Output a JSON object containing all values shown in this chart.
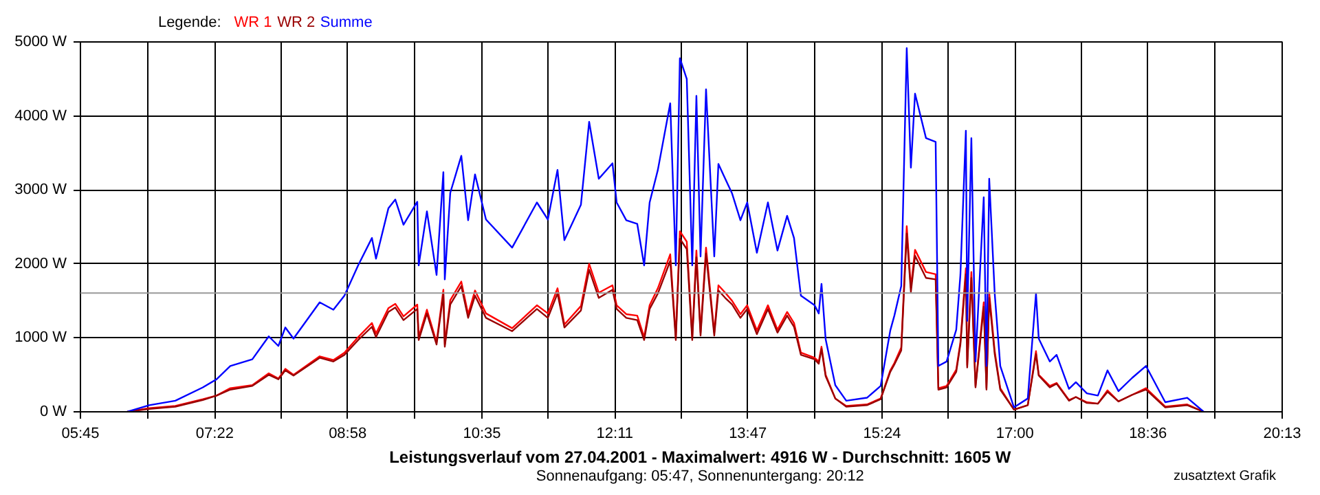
{
  "chart_data": {
    "type": "line",
    "title": "Leistungsverlauf vom 27.04.2001 - Maximalwert: 4916 W - Durchschnitt: 1605 W",
    "subtitle": "Sonnenaufgang: 05:47, Sonnenuntergang: 20:12",
    "legend_title": "Legende:",
    "annotations": [
      "zusatztext Grafik"
    ],
    "x": [
      6.313,
      6.578,
      6.892,
      7.223,
      7.389,
      7.554,
      7.819,
      8.017,
      8.133,
      8.216,
      8.315,
      8.63,
      8.795,
      8.928,
      9.093,
      9.259,
      9.308,
      9.457,
      9.54,
      9.639,
      9.805,
      9.822,
      9.921,
      10.037,
      10.119,
      10.136,
      10.202,
      10.335,
      10.417,
      10.5,
      10.632,
      10.947,
      11.245,
      11.377,
      11.493,
      11.576,
      11.775,
      11.874,
      11.99,
      12.155,
      12.205,
      12.321,
      12.453,
      12.536,
      12.602,
      12.701,
      12.85,
      12.917,
      12.966,
      13.049,
      13.115,
      13.165,
      13.215,
      13.281,
      13.38,
      13.43,
      13.512,
      13.595,
      13.695,
      13.777,
      13.893,
      14.026,
      14.141,
      14.257,
      14.34,
      14.423,
      14.588,
      14.638,
      14.671,
      14.721,
      14.837,
      14.969,
      15.218,
      15.383,
      15.499,
      15.548,
      15.631,
      15.697,
      15.747,
      15.797,
      15.929,
      16.045,
      16.078,
      16.177,
      16.293,
      16.343,
      16.409,
      16.425,
      16.475,
      16.525,
      16.624,
      16.657,
      16.69,
      16.756,
      16.823,
      16.988,
      17.154,
      17.253,
      17.286,
      17.419,
      17.501,
      17.65,
      17.733,
      17.865,
      17.998,
      18.114,
      18.246,
      18.412,
      18.577,
      18.809,
      19.074,
      19.272
    ],
    "series": [
      {
        "name": "WR 1",
        "color": "#ff0000",
        "values": [
          0,
          50,
          80,
          170,
          220,
          320,
          360,
          520,
          450,
          580,
          500,
          750,
          700,
          800,
          1010,
          1200,
          1060,
          1400,
          1460,
          1290,
          1450,
          1010,
          1380,
          940,
          1650,
          910,
          1510,
          1760,
          1320,
          1640,
          1330,
          1130,
          1440,
          1330,
          1670,
          1180,
          1430,
          2000,
          1610,
          1710,
          1440,
          1320,
          1300,
          1010,
          1440,
          1670,
          2130,
          1010,
          2440,
          2300,
          1010,
          2180,
          1070,
          2220,
          1070,
          1710,
          1610,
          1500,
          1320,
          1440,
          1100,
          1440,
          1110,
          1350,
          1200,
          800,
          730,
          680,
          880,
          500,
          180,
          80,
          100,
          180,
          560,
          660,
          870,
          2510,
          1680,
          2190,
          1890,
          1860,
          320,
          350,
          570,
          940,
          1940,
          630,
          1890,
          350,
          1480,
          320,
          1610,
          820,
          320,
          30,
          90,
          820,
          500,
          350,
          390,
          160,
          200,
          130,
          110,
          290,
          140,
          230,
          320,
          70,
          100,
          0
        ]
      },
      {
        "name": "WR 2",
        "color": "#990000",
        "values": [
          0,
          40,
          70,
          160,
          220,
          300,
          350,
          500,
          440,
          560,
          490,
          730,
          680,
          770,
          970,
          1150,
          1010,
          1350,
          1410,
          1240,
          1390,
          970,
          1330,
          910,
          1590,
          880,
          1450,
          1700,
          1270,
          1570,
          1270,
          1090,
          1390,
          1270,
          1600,
          1140,
          1370,
          1920,
          1540,
          1650,
          1390,
          1270,
          1240,
          970,
          1390,
          1600,
          2040,
          970,
          2340,
          2200,
          970,
          2090,
          1030,
          2140,
          1030,
          1640,
          1540,
          1450,
          1270,
          1390,
          1050,
          1390,
          1070,
          1300,
          1150,
          770,
          710,
          650,
          850,
          480,
          180,
          70,
          90,
          170,
          540,
          640,
          830,
          2410,
          1620,
          2110,
          1810,
          1790,
          300,
          330,
          540,
          910,
          1860,
          600,
          1810,
          330,
          1420,
          300,
          1540,
          780,
          300,
          30,
          90,
          780,
          490,
          330,
          380,
          150,
          200,
          120,
          110,
          270,
          140,
          230,
          300,
          60,
          90,
          0
        ]
      },
      {
        "name": "Summe",
        "color": "#0000ff",
        "values": [
          0,
          90,
          150,
          330,
          440,
          620,
          710,
          1020,
          890,
          1140,
          990,
          1480,
          1380,
          1570,
          1980,
          2350,
          2070,
          2750,
          2870,
          2530,
          2840,
          1980,
          2710,
          1850,
          3240,
          1790,
          2960,
          3460,
          2590,
          3210,
          2600,
          2220,
          2830,
          2600,
          3270,
          2320,
          2800,
          3920,
          3150,
          3360,
          2830,
          2590,
          2540,
          1980,
          2830,
          3270,
          4170,
          1980,
          4780,
          4500,
          1980,
          4270,
          2100,
          4360,
          2100,
          3350,
          3150,
          2950,
          2590,
          2830,
          2150,
          2830,
          2180,
          2650,
          2350,
          1570,
          1440,
          1330,
          1730,
          980,
          360,
          150,
          190,
          350,
          1100,
          1300,
          1700,
          4916,
          3300,
          4300,
          3700,
          3650,
          620,
          680,
          1110,
          1850,
          3800,
          1230,
          3700,
          680,
          2900,
          620,
          3150,
          1600,
          620,
          60,
          180,
          1600,
          990,
          680,
          770,
          310,
          400,
          250,
          220,
          560,
          280,
          460,
          620,
          130,
          190,
          0
        ]
      }
    ],
    "xlim": [
      5.75,
      20.2167
    ],
    "xticks": [
      {
        "value": 5.75,
        "label": "05:45"
      },
      {
        "value": 6.5583,
        "label": null
      },
      {
        "value": 7.3667,
        "label": "07:22"
      },
      {
        "value": 8.1667,
        "label": null
      },
      {
        "value": 8.9667,
        "label": "08:58"
      },
      {
        "value": 9.775,
        "label": null
      },
      {
        "value": 10.5833,
        "label": "10:35"
      },
      {
        "value": 11.3833,
        "label": null
      },
      {
        "value": 12.1833,
        "label": "12:11"
      },
      {
        "value": 12.9833,
        "label": null
      },
      {
        "value": 13.7833,
        "label": "13:47"
      },
      {
        "value": 14.5917,
        "label": null
      },
      {
        "value": 15.4,
        "label": "15:24"
      },
      {
        "value": 16.2,
        "label": null
      },
      {
        "value": 17.0,
        "label": "17:00"
      },
      {
        "value": 17.8,
        "label": null
      },
      {
        "value": 18.6,
        "label": "18:36"
      },
      {
        "value": 19.4083,
        "label": null
      },
      {
        "value": 20.2167,
        "label": "20:13"
      }
    ],
    "ylim": [
      0,
      5000
    ],
    "yticks": [
      {
        "value": 0,
        "label": "0 W"
      },
      {
        "value": 1000,
        "label": "1000 W"
      },
      {
        "value": 2000,
        "label": "2000 W"
      },
      {
        "value": 3000,
        "label": "3000 W"
      },
      {
        "value": 4000,
        "label": "4000 W"
      },
      {
        "value": 5000,
        "label": "5000 W"
      }
    ],
    "ref_lines": [
      {
        "axis": "y",
        "value": 1605,
        "color": "#999999"
      }
    ],
    "grid": true,
    "marker": "none",
    "line_style": "solid"
  }
}
